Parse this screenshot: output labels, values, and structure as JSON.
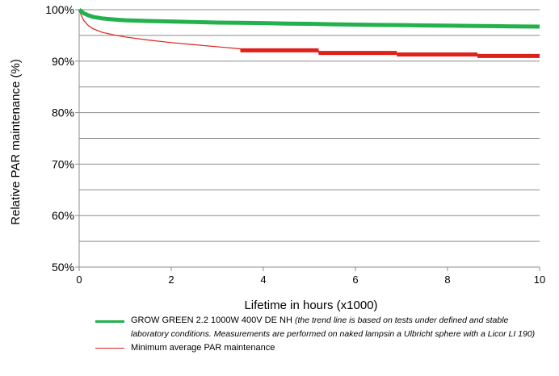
{
  "chart_data": {
    "type": "line",
    "title": "",
    "xlabel": "Lifetime in hours (x1000)",
    "ylabel": "Relative PAR maintenance (%)",
    "xlim": [
      0,
      10
    ],
    "ylim": [
      50,
      100
    ],
    "x_ticks": [
      "0",
      "2",
      "4",
      "6",
      "8",
      "10"
    ],
    "y_ticks": [
      "50%",
      "60%",
      "70%",
      "80%",
      "90%",
      "100%"
    ],
    "grid": true,
    "legend_position": "bottom",
    "series": [
      {
        "name": "GROW GREEN 2.2 1000W 400V DE NH",
        "name_note": "(the trend line is based on tests under defined and stable laboratory conditions. Measurements are performed on naked lampsin a Ulbricht sphere with a Licor LI 190)",
        "color": "#22b14c",
        "style": "thick",
        "x": [
          0,
          0.1,
          0.2,
          0.3,
          0.5,
          0.75,
          1,
          1.5,
          2,
          2.5,
          3,
          3.5,
          4,
          4.5,
          5,
          5.5,
          6,
          6.5,
          7,
          7.5,
          8,
          8.5,
          9,
          9.5,
          10
        ],
        "y": [
          100,
          99.3,
          98.9,
          98.6,
          98.3,
          98.1,
          97.95,
          97.8,
          97.7,
          97.6,
          97.5,
          97.45,
          97.4,
          97.3,
          97.25,
          97.15,
          97.1,
          97.05,
          97,
          96.95,
          96.9,
          96.85,
          96.8,
          96.75,
          96.7
        ]
      },
      {
        "name": "Minimum average PAR maintenance",
        "color": "#e0201a",
        "style": "thin",
        "x": [
          0,
          0.05,
          0.1,
          0.2,
          0.3,
          0.5,
          0.75,
          1,
          1.5,
          2,
          2.5,
          3,
          3.5
        ],
        "y": [
          100,
          98.8,
          97.9,
          96.9,
          96.3,
          95.6,
          95.1,
          94.7,
          94.1,
          93.6,
          93.2,
          92.8,
          92.4
        ]
      }
    ],
    "minimum_steps": [
      {
        "x_start": 3.5,
        "x_end": 5.2,
        "y": 92.1
      },
      {
        "x_start": 5.2,
        "x_end": 6.9,
        "y": 91.6
      },
      {
        "x_start": 6.9,
        "x_end": 8.65,
        "y": 91.3
      },
      {
        "x_start": 8.65,
        "x_end": 10,
        "y": 91.0
      }
    ]
  },
  "legend": {
    "green_label": "GROW GREEN 2.2 1000W 400V DE NH ",
    "green_note": "(the trend line is based on tests under defined and stable laboratory conditions. Measurements are performed on naked lampsin a Ulbricht sphere with a Licor LI 190)",
    "red_label": "Minimum average PAR maintenance"
  }
}
